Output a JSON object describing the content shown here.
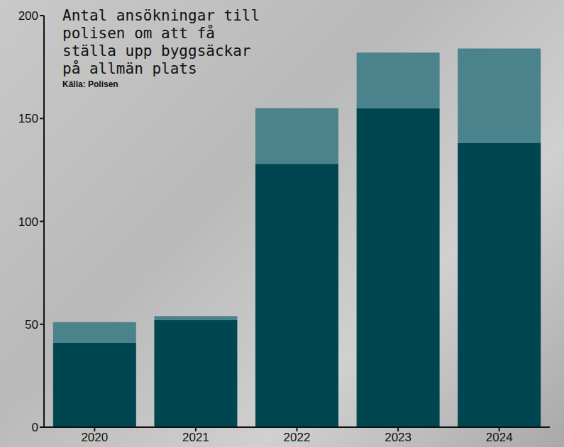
{
  "chart_data": {
    "type": "bar",
    "title": "Antal ansökningar till polisen om att få ställa upp byggsäckar på allmän plats",
    "subtitle": "Källa: Polisen",
    "categories": [
      "2020",
      "2021",
      "2022",
      "2023",
      "2024"
    ],
    "series": [
      {
        "color": "#004651",
        "values": [
          41,
          52,
          128,
          155,
          138
        ]
      },
      {
        "color": "#4b838c",
        "values": [
          10,
          2,
          27,
          27,
          46
        ]
      }
    ],
    "stacked": true,
    "ylim": [
      0,
      200
    ],
    "yticks": [
      0,
      50,
      100,
      150,
      200
    ],
    "grid": false
  }
}
